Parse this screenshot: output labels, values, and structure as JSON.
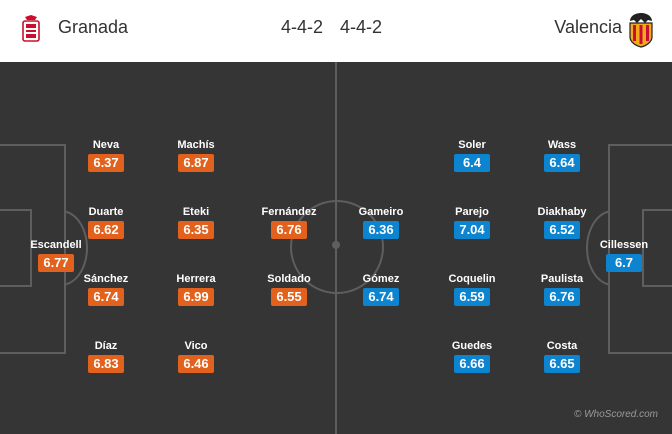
{
  "home": {
    "name": "Granada",
    "formation": "4-4-2",
    "crest_icon": "granada-crest-icon",
    "color": "#e2621d",
    "players": [
      {
        "name": "Escandell",
        "rating": "6.77"
      },
      {
        "name": "Neva",
        "rating": "6.37"
      },
      {
        "name": "Duarte",
        "rating": "6.62"
      },
      {
        "name": "Sánchez",
        "rating": "6.74"
      },
      {
        "name": "Díaz",
        "rating": "6.83"
      },
      {
        "name": "Machís",
        "rating": "6.87"
      },
      {
        "name": "Eteki",
        "rating": "6.35"
      },
      {
        "name": "Herrera",
        "rating": "6.99"
      },
      {
        "name": "Vico",
        "rating": "6.46"
      },
      {
        "name": "Fernández",
        "rating": "6.76"
      },
      {
        "name": "Soldado",
        "rating": "6.55"
      }
    ]
  },
  "away": {
    "name": "Valencia",
    "formation": "4-4-2",
    "crest_icon": "valencia-bat-crest-icon",
    "color": "#0d84d0",
    "players": [
      {
        "name": "Cillessen",
        "rating": "6.7"
      },
      {
        "name": "Wass",
        "rating": "6.64"
      },
      {
        "name": "Diakhaby",
        "rating": "6.52"
      },
      {
        "name": "Paulista",
        "rating": "6.76"
      },
      {
        "name": "Costa",
        "rating": "6.65"
      },
      {
        "name": "Soler",
        "rating": "6.4"
      },
      {
        "name": "Parejo",
        "rating": "7.04"
      },
      {
        "name": "Coquelin",
        "rating": "6.59"
      },
      {
        "name": "Guedes",
        "rating": "6.66"
      },
      {
        "name": "Gameiro",
        "rating": "6.36"
      },
      {
        "name": "Gómez",
        "rating": "6.74"
      }
    ]
  },
  "pitch_color": "#353535",
  "watermark": "© WhoScored.com"
}
